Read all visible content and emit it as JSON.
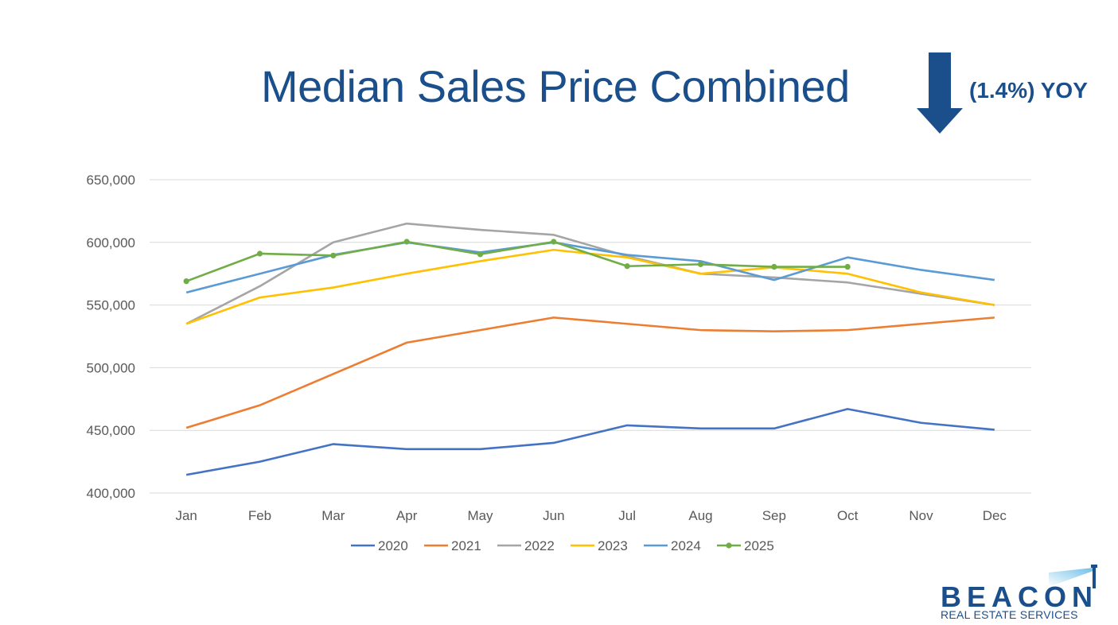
{
  "title": "Median Sales Price Combined",
  "yoy_label": "(1.4%) YOY",
  "yoy_arrow_icon": "arrow-down-icon",
  "brand": {
    "name": "BEACON",
    "tagline": "REAL ESTATE SERVICES"
  },
  "colors": {
    "title": "#1b4f8c",
    "arrow": "#1b4f8c"
  },
  "chart_data": {
    "type": "line",
    "title": "",
    "xlabel": "",
    "ylabel": "",
    "ylim": [
      400000,
      650000
    ],
    "yticks": [
      400000,
      450000,
      500000,
      550000,
      600000,
      650000
    ],
    "ytick_labels": [
      "400,000",
      "450,000",
      "500,000",
      "550,000",
      "600,000",
      "650,000"
    ],
    "categories": [
      "Jan",
      "Feb",
      "Mar",
      "Apr",
      "May",
      "Jun",
      "Jul",
      "Aug",
      "Sep",
      "Oct",
      "Nov",
      "Dec"
    ],
    "grid": true,
    "legend": "bottom",
    "series": [
      {
        "name": "2020",
        "color": "#4472c4",
        "markers": false,
        "values": [
          414500,
          425000,
          439000,
          435000,
          435000,
          440000,
          454000,
          451500,
          451500,
          467000,
          456000,
          450500
        ]
      },
      {
        "name": "2021",
        "color": "#ed7d31",
        "markers": false,
        "values": [
          452000,
          470000,
          495000,
          520000,
          530000,
          540000,
          535000,
          530000,
          529000,
          530000,
          535000,
          540000
        ]
      },
      {
        "name": "2022",
        "color": "#a5a5a5",
        "markers": false,
        "values": [
          535000,
          565000,
          600000,
          615000,
          610000,
          606000,
          589000,
          575000,
          572000,
          568000,
          559000,
          550000
        ]
      },
      {
        "name": "2023",
        "color": "#ffc000",
        "markers": false,
        "values": [
          535000,
          556000,
          564000,
          575000,
          585000,
          594000,
          588000,
          575000,
          580000,
          575000,
          560000,
          550000
        ]
      },
      {
        "name": "2024",
        "color": "#5b9bd5",
        "markers": false,
        "values": [
          560000,
          575000,
          590000,
          600000,
          592000,
          600000,
          590000,
          585000,
          570000,
          588000,
          578000,
          570000
        ]
      },
      {
        "name": "2025",
        "color": "#70ad47",
        "markers": true,
        "values": [
          569000,
          591000,
          589500,
          600500,
          590500,
          600500,
          581000,
          582500,
          580500,
          580500,
          null,
          null
        ]
      }
    ]
  }
}
